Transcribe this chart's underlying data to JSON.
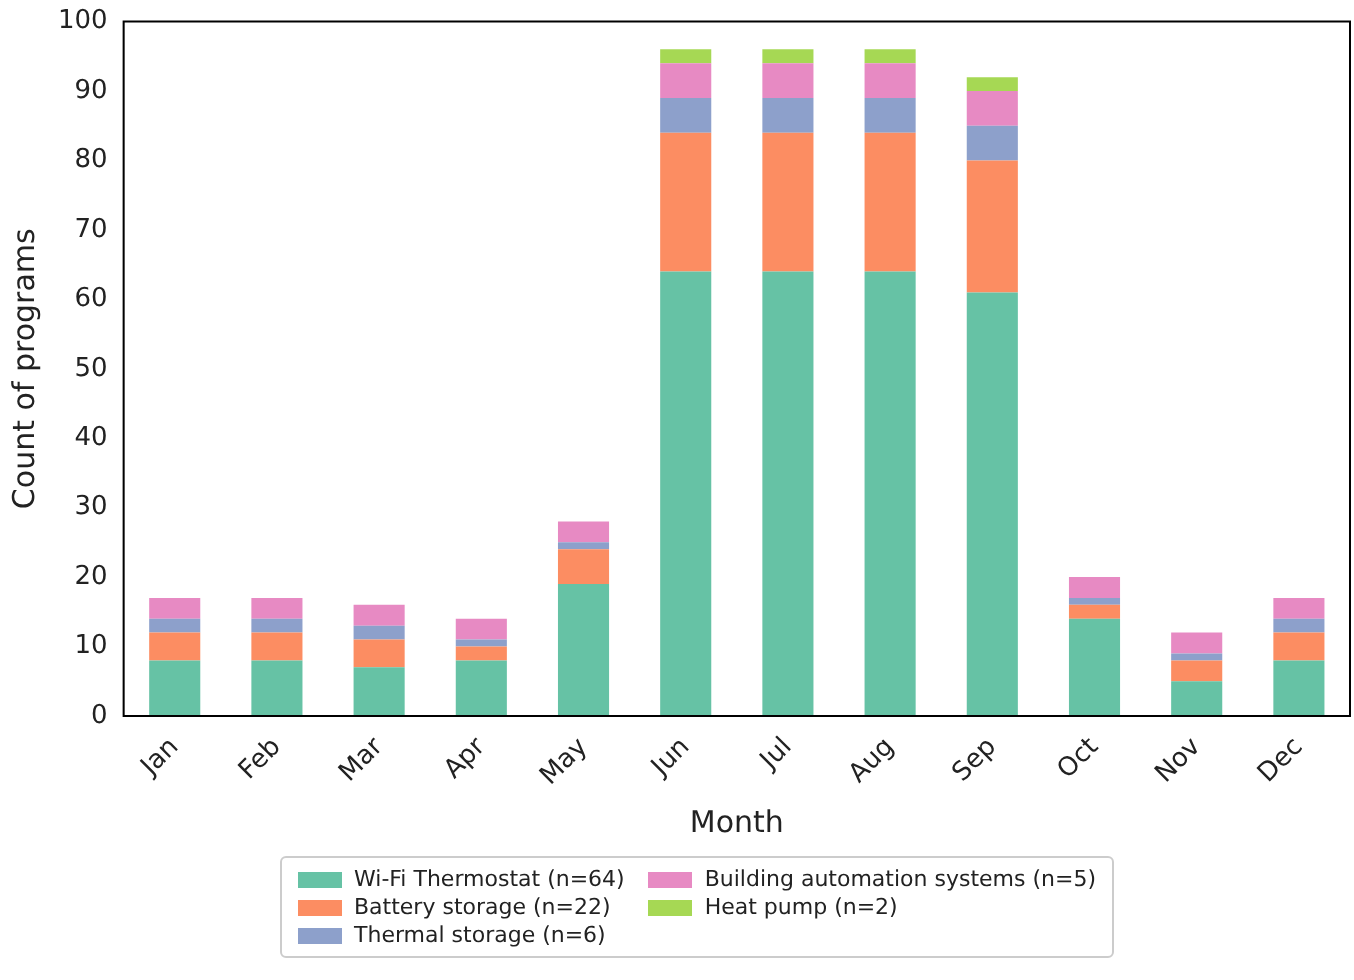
{
  "chart_data": {
    "type": "bar",
    "stacked": true,
    "xlabel": "Month",
    "ylabel": "Count of programs",
    "categories": [
      "Jan",
      "Feb",
      "Mar",
      "Apr",
      "May",
      "Jun",
      "Jul",
      "Aug",
      "Sep",
      "Oct",
      "Nov",
      "Dec"
    ],
    "series": [
      {
        "name": "Wi-Fi Thermostat (n=64)",
        "color": "#66c2a5",
        "values": [
          8,
          8,
          7,
          8,
          19,
          64,
          64,
          64,
          61,
          14,
          5,
          8
        ]
      },
      {
        "name": "Battery storage (n=22)",
        "color": "#fc8d62",
        "values": [
          4,
          4,
          4,
          2,
          5,
          20,
          20,
          20,
          19,
          2,
          3,
          4
        ]
      },
      {
        "name": "Thermal storage (n=6)",
        "color": "#8da0cb",
        "values": [
          2,
          2,
          2,
          1,
          1,
          5,
          5,
          5,
          5,
          1,
          1,
          2
        ]
      },
      {
        "name": "Building automation systems (n=5)",
        "color": "#e78ac3",
        "values": [
          3,
          3,
          3,
          3,
          3,
          5,
          5,
          5,
          5,
          3,
          3,
          3
        ]
      },
      {
        "name": "Heat pump (n=2)",
        "color": "#a6d854",
        "values": [
          0,
          0,
          0,
          0,
          0,
          2,
          2,
          2,
          2,
          0,
          0,
          0
        ]
      }
    ],
    "ylim": [
      0,
      100
    ],
    "yticks": [
      0,
      10,
      20,
      30,
      40,
      50,
      60,
      70,
      80,
      90,
      100
    ],
    "grid": false,
    "legend": "bottom"
  }
}
